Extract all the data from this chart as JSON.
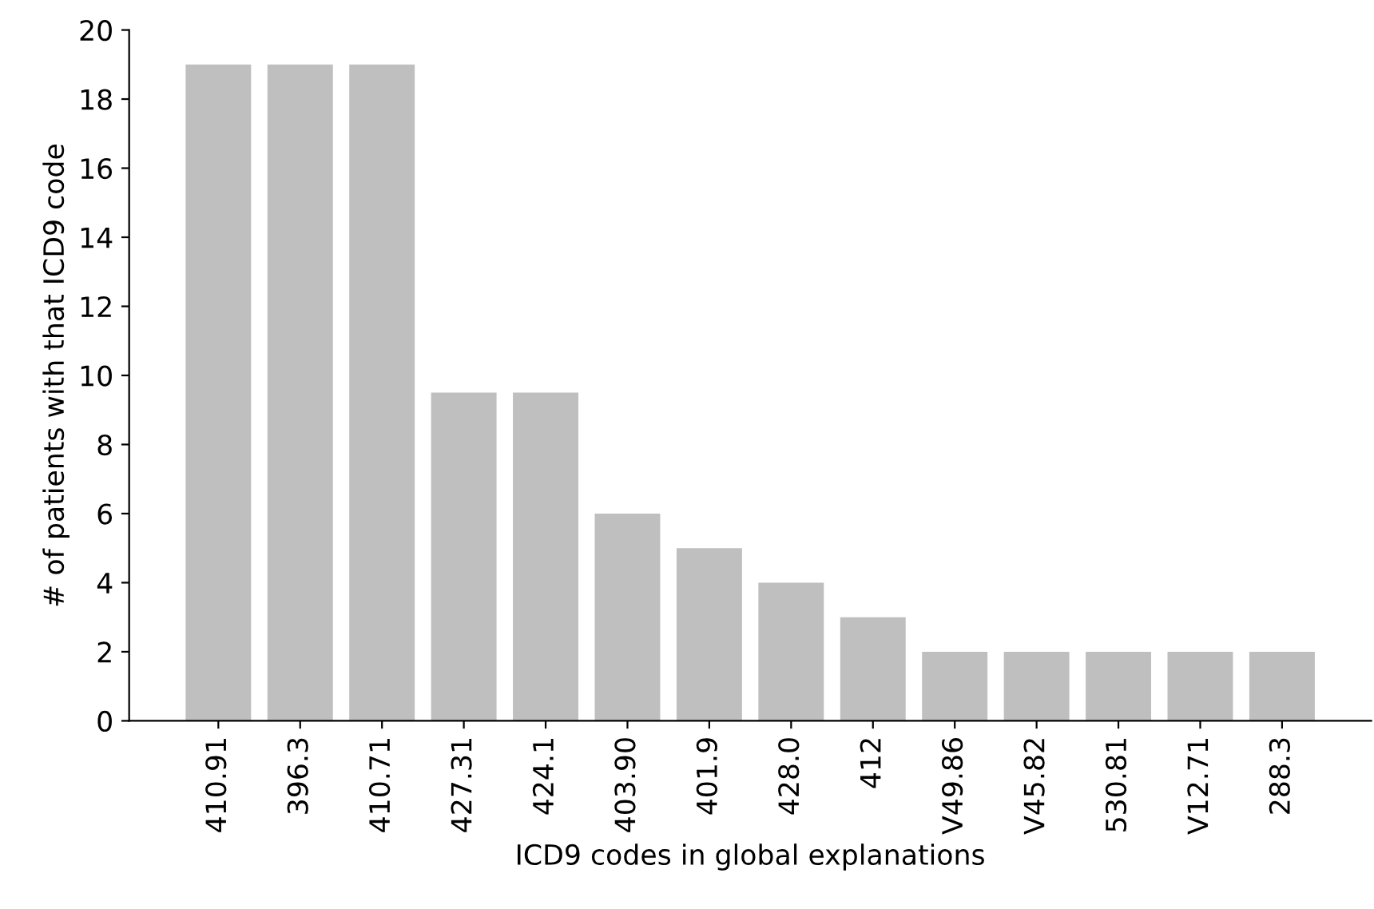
{
  "chart_data": {
    "type": "bar",
    "xlabel": "ICD9 codes in global explanations",
    "ylabel": "# of patients with that ICD9 code",
    "categories": [
      "410.91",
      "396.3",
      "410.71",
      "427.31",
      "424.1",
      "403.90",
      "401.9",
      "428.0",
      "412",
      "V49.86",
      "V45.82",
      "530.81",
      "V12.71",
      "288.3"
    ],
    "values": [
      19,
      19,
      19,
      9.5,
      9.5,
      6,
      5,
      4,
      3,
      2,
      2,
      2,
      2,
      2
    ],
    "color": "#bfbfbf",
    "ylim": [
      0,
      20
    ],
    "yticks": [
      0,
      2,
      4,
      6,
      8,
      10,
      12,
      14,
      16,
      18,
      20
    ],
    "grid": false,
    "legend": false
  }
}
